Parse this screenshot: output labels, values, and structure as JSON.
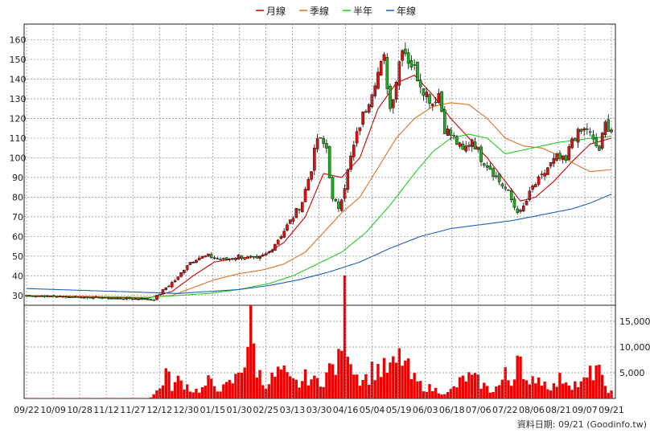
{
  "legend": [
    {
      "label": "月線",
      "color": "#cc0000"
    },
    {
      "label": "季線",
      "color": "#e07020"
    },
    {
      "label": "半年",
      "color": "#22cc22"
    },
    {
      "label": "年線",
      "color": "#1f5fbf"
    }
  ],
  "colors": {
    "up": "#dd1111",
    "down": "#22aa22",
    "volume": "#ee0000",
    "grid": "#8a8a8a"
  },
  "source_note": "資料日期: 09/21 (Goodinfo.tw)",
  "chart_data": [
    {
      "type": "candlestick",
      "title": "",
      "y_ticks": [
        "30",
        "40",
        "50",
        "60",
        "70",
        "80",
        "90",
        "100",
        "110",
        "120",
        "130",
        "140",
        "150",
        "160"
      ],
      "ylim": [
        25,
        168
      ],
      "x_ticks": [
        "09/22",
        "10/09",
        "10/28",
        "11/12",
        "11/27",
        "12/12",
        "12/30",
        "01/15",
        "01/30",
        "02/25",
        "03/13",
        "03/30",
        "04/16",
        "05/04",
        "05/19",
        "06/03",
        "06/18",
        "07/06",
        "07/22",
        "08/06",
        "08/21",
        "09/07",
        "09/21"
      ],
      "closing_price_path": [
        [
          0,
          30
        ],
        [
          10,
          29.5
        ],
        [
          20,
          29
        ],
        [
          30,
          28.5
        ],
        [
          38,
          28.2
        ],
        [
          42,
          28
        ],
        [
          46,
          34
        ],
        [
          50,
          39
        ],
        [
          53,
          46
        ],
        [
          56,
          49
        ],
        [
          60,
          50
        ],
        [
          65,
          48
        ],
        [
          70,
          50
        ],
        [
          76,
          48
        ],
        [
          80,
          52
        ],
        [
          85,
          63
        ],
        [
          88,
          70
        ],
        [
          91,
          78
        ],
        [
          94,
          95
        ],
        [
          96,
          110
        ],
        [
          99,
          105
        ],
        [
          101,
          78
        ],
        [
          103,
          75
        ],
        [
          105,
          86
        ],
        [
          107,
          100
        ],
        [
          110,
          117
        ],
        [
          113,
          130
        ],
        [
          115,
          140
        ],
        [
          118,
          150
        ],
        [
          120,
          125
        ],
        [
          122,
          140
        ],
        [
          124,
          158
        ],
        [
          126,
          150
        ],
        [
          128,
          145
        ],
        [
          131,
          135
        ],
        [
          134,
          128
        ],
        [
          136,
          133
        ],
        [
          138,
          115
        ],
        [
          141,
          110
        ],
        [
          144,
          103
        ],
        [
          147,
          110
        ],
        [
          150,
          100
        ],
        [
          153,
          95
        ],
        [
          156,
          88
        ],
        [
          159,
          82
        ],
        [
          161,
          75
        ],
        [
          163,
          72
        ],
        [
          165,
          78
        ],
        [
          167,
          85
        ],
        [
          170,
          90
        ],
        [
          172,
          95
        ],
        [
          175,
          100
        ],
        [
          178,
          98
        ],
        [
          180,
          110
        ],
        [
          183,
          113
        ],
        [
          185,
          115
        ],
        [
          187,
          108
        ],
        [
          189,
          104
        ],
        [
          191,
          117
        ],
        [
          193,
          115
        ]
      ],
      "moving_averages": [
        {
          "name": "月線",
          "points": [
            [
              0,
              29.8
            ],
            [
              40,
              28.5
            ],
            [
              48,
              32
            ],
            [
              55,
              40
            ],
            [
              62,
              47
            ],
            [
              70,
              49
            ],
            [
              78,
              50
            ],
            [
              85,
              57
            ],
            [
              92,
              70
            ],
            [
              98,
              92
            ],
            [
              104,
              90
            ],
            [
              110,
              100
            ],
            [
              116,
              125
            ],
            [
              122,
              138
            ],
            [
              128,
              142
            ],
            [
              134,
              132
            ],
            [
              140,
              120
            ],
            [
              146,
              110
            ],
            [
              152,
              100
            ],
            [
              158,
              88
            ],
            [
              163,
              78
            ],
            [
              168,
              80
            ],
            [
              174,
              88
            ],
            [
              180,
              98
            ],
            [
              186,
              107
            ],
            [
              193,
              110
            ]
          ]
        },
        {
          "name": "季線",
          "points": [
            [
              0,
              30
            ],
            [
              40,
              29
            ],
            [
              48,
              30
            ],
            [
              55,
              34
            ],
            [
              62,
              38
            ],
            [
              70,
              41
            ],
            [
              78,
              43
            ],
            [
              85,
              46
            ],
            [
              92,
              52
            ],
            [
              98,
              62
            ],
            [
              104,
              72
            ],
            [
              110,
              80
            ],
            [
              116,
              95
            ],
            [
              122,
              110
            ],
            [
              128,
              120
            ],
            [
              134,
              126
            ],
            [
              140,
              128
            ],
            [
              146,
              127
            ],
            [
              152,
              120
            ],
            [
              158,
              110
            ],
            [
              164,
              106
            ],
            [
              170,
              105
            ],
            [
              176,
              101
            ],
            [
              182,
              96
            ],
            [
              186,
              93
            ],
            [
              193,
              94
            ]
          ]
        },
        {
          "name": "半年",
          "points": [
            [
              0,
              29.5
            ],
            [
              40,
              29
            ],
            [
              50,
              30
            ],
            [
              60,
              31
            ],
            [
              70,
              33
            ],
            [
              80,
              36
            ],
            [
              88,
              40
            ],
            [
              96,
              46
            ],
            [
              104,
              52
            ],
            [
              112,
              62
            ],
            [
              120,
              76
            ],
            [
              128,
              92
            ],
            [
              134,
              103
            ],
            [
              140,
              110
            ],
            [
              146,
              112
            ],
            [
              152,
              110
            ],
            [
              158,
              102
            ],
            [
              164,
              104
            ],
            [
              170,
              106
            ],
            [
              176,
              108
            ],
            [
              182,
              109
            ],
            [
              186,
              110
            ],
            [
              193,
              111
            ]
          ]
        },
        {
          "name": "年線",
          "points": [
            [
              0,
              33.5
            ],
            [
              20,
              32.5
            ],
            [
              40,
              31.5
            ],
            [
              50,
              31
            ],
            [
              60,
              32
            ],
            [
              70,
              33
            ],
            [
              80,
              35
            ],
            [
              90,
              38
            ],
            [
              100,
              42
            ],
            [
              110,
              47
            ],
            [
              120,
              54
            ],
            [
              130,
              60
            ],
            [
              140,
              64
            ],
            [
              150,
              66
            ],
            [
              160,
              68
            ],
            [
              170,
              71
            ],
            [
              180,
              74
            ],
            [
              186,
              77
            ],
            [
              193,
              81.5
            ]
          ]
        }
      ]
    },
    {
      "type": "bar",
      "title": "",
      "y_ticks": [
        "5,000",
        "10,000",
        "15,000"
      ],
      "ylim": [
        0,
        17500
      ],
      "volume_path": [
        [
          0,
          80
        ],
        [
          40,
          90
        ],
        [
          41,
          300
        ],
        [
          44,
          1900
        ],
        [
          46,
          5200
        ],
        [
          48,
          2300
        ],
        [
          50,
          3400
        ],
        [
          52,
          3000
        ],
        [
          55,
          1500
        ],
        [
          58,
          1800
        ],
        [
          60,
          3200
        ],
        [
          63,
          2200
        ],
        [
          65,
          2000
        ],
        [
          67,
          2800
        ],
        [
          69,
          3800
        ],
        [
          72,
          8000
        ],
        [
          74,
          13500
        ],
        [
          76,
          6000
        ],
        [
          78,
          3000
        ],
        [
          81,
          3800
        ],
        [
          84,
          5300
        ],
        [
          87,
          3200
        ],
        [
          90,
          2800
        ],
        [
          93,
          4500
        ],
        [
          95,
          3200
        ],
        [
          98,
          4000
        ],
        [
          100,
          5500
        ],
        [
          103,
          6800
        ],
        [
          105,
          17500
        ],
        [
          107,
          8900
        ],
        [
          109,
          4600
        ],
        [
          112,
          4000
        ],
        [
          115,
          6000
        ],
        [
          118,
          5500
        ],
        [
          121,
          6000
        ],
        [
          124,
          8200
        ],
        [
          127,
          4000
        ],
        [
          130,
          2600
        ],
        [
          133,
          2000
        ],
        [
          136,
          1500
        ],
        [
          139,
          1000
        ],
        [
          142,
          2500
        ],
        [
          145,
          4200
        ],
        [
          148,
          3600
        ],
        [
          150,
          3000
        ],
        [
          153,
          1500
        ],
        [
          156,
          2500
        ],
        [
          158,
          4500
        ],
        [
          160,
          2800
        ],
        [
          162,
          9000
        ],
        [
          163,
          14500
        ],
        [
          164,
          3500
        ],
        [
          166,
          2000
        ],
        [
          168,
          4800
        ],
        [
          171,
          3000
        ],
        [
          174,
          2300
        ],
        [
          177,
          4200
        ],
        [
          180,
          3000
        ],
        [
          183,
          2600
        ],
        [
          186,
          4500
        ],
        [
          188,
          6500
        ],
        [
          190,
          3200
        ],
        [
          193,
          1200
        ]
      ]
    }
  ]
}
